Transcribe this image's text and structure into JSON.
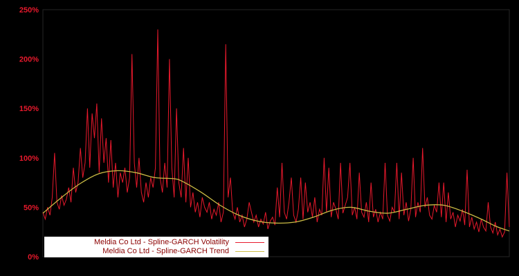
{
  "chart_data": {
    "type": "line",
    "title": "",
    "xlabel": "",
    "ylabel": "",
    "background_color": "#000000",
    "frame_color": "#262626",
    "tick_label_color": "#e8192c",
    "legend_text_color": "#8b0000",
    "legend_background": "#ffffff",
    "ylim": [
      0,
      250
    ],
    "yticks": [
      0,
      50,
      100,
      150,
      200,
      250
    ],
    "ytick_suffix": "%",
    "x_range": [
      0,
      1
    ],
    "grid": false,
    "legend_position": "inside-bottom-left",
    "series": [
      {
        "name": "Meldia Co Ltd - Spline-GARCH Volatility",
        "color": "#e8192c",
        "style": "spiky-line",
        "values": [
          45,
          38,
          50,
          42,
          60,
          105,
          55,
          48,
          62,
          52,
          58,
          70,
          55,
          90,
          65,
          75,
          110,
          80,
          95,
          150,
          90,
          145,
          120,
          155,
          85,
          140,
          95,
          120,
          75,
          118,
          70,
          95,
          60,
          85,
          75,
          90,
          65,
          80,
          205,
          95,
          70,
          100,
          65,
          55,
          75,
          60,
          80,
          70,
          90,
          230,
          80,
          65,
          95,
          70,
          200,
          90,
          60,
          150,
          75,
          60,
          110,
          55,
          100,
          50,
          65,
          45,
          55,
          40,
          60,
          50,
          45,
          55,
          38,
          48,
          42,
          55,
          35,
          45,
          215,
          60,
          80,
          45,
          38,
          50,
          35,
          42,
          30,
          38,
          55,
          45,
          35,
          42,
          30,
          38,
          33,
          45,
          28,
          36,
          40,
          32,
          70,
          40,
          95,
          45,
          38,
          55,
          80,
          42,
          35,
          48,
          80,
          38,
          75,
          45,
          55,
          40,
          60,
          35,
          48,
          42,
          100,
          45,
          90,
          40,
          55,
          48,
          38,
          95,
          44,
          52,
          60,
          95,
          42,
          50,
          38,
          85,
          45,
          40,
          55,
          35,
          75,
          40,
          48,
          35,
          45,
          38,
          95,
          42,
          36,
          50,
          45,
          95,
          38,
          85,
          42,
          55,
          36,
          48,
          100,
          40,
          55,
          45,
          110,
          50,
          60,
          42,
          38,
          52,
          45,
          75,
          40,
          75,
          35,
          65,
          38,
          45,
          30,
          42,
          36,
          48,
          32,
          88,
          30,
          40,
          28,
          35,
          25,
          38,
          30,
          26,
          55,
          30,
          24,
          35,
          22,
          28,
          20,
          25,
          85,
          30
        ]
      },
      {
        "name": "Meldia Co Ltd - Spline-GARCH Trend",
        "color": "#cdbd45",
        "style": "smooth-line",
        "anchors": [
          [
            0,
            44
          ],
          [
            0.04,
            60
          ],
          [
            0.08,
            74
          ],
          [
            0.12,
            84
          ],
          [
            0.16,
            87
          ],
          [
            0.2,
            85
          ],
          [
            0.24,
            80
          ],
          [
            0.28,
            79
          ],
          [
            0.3,
            76
          ],
          [
            0.34,
            65
          ],
          [
            0.38,
            52
          ],
          [
            0.42,
            42
          ],
          [
            0.46,
            36
          ],
          [
            0.5,
            34
          ],
          [
            0.54,
            35
          ],
          [
            0.58,
            40
          ],
          [
            0.62,
            47
          ],
          [
            0.66,
            50
          ],
          [
            0.7,
            46
          ],
          [
            0.74,
            44
          ],
          [
            0.78,
            48
          ],
          [
            0.82,
            52
          ],
          [
            0.86,
            52
          ],
          [
            0.9,
            46
          ],
          [
            0.94,
            38
          ],
          [
            0.97,
            31
          ],
          [
            1.0,
            26
          ]
        ]
      }
    ]
  }
}
